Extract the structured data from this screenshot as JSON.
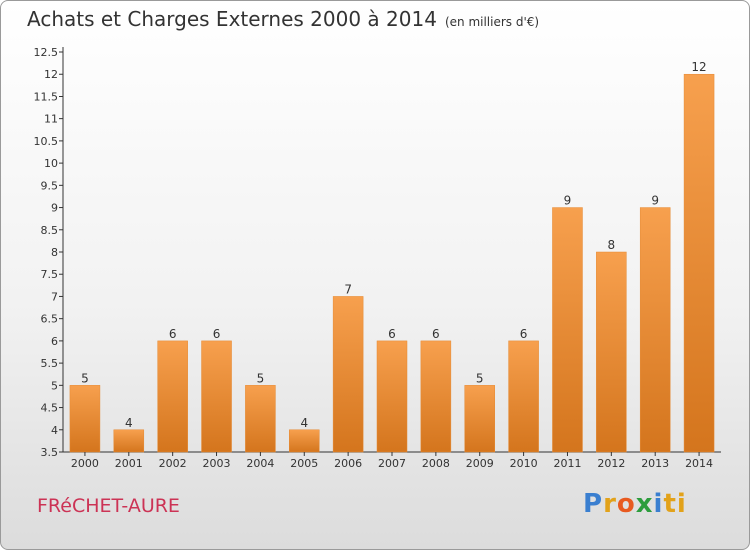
{
  "title": "Achats et Charges Externes 2000 à 2014",
  "unit": "(en milliers d'€)",
  "commune": "FRéCHET-AURE",
  "brand": [
    "P",
    "r",
    "o",
    "x",
    "i",
    "ti"
  ],
  "colors": {
    "bar_top": "#f7a04e",
    "bar_bottom": "#d4751d",
    "axis": "#333333",
    "grid": "#bbbbbb"
  },
  "chart_data": {
    "type": "bar",
    "categories": [
      "2000",
      "2001",
      "2002",
      "2003",
      "2004",
      "2005",
      "2006",
      "2007",
      "2008",
      "2009",
      "2010",
      "2011",
      "2012",
      "2013",
      "2014"
    ],
    "values": [
      5,
      4,
      6,
      6,
      5,
      4,
      7,
      6,
      6,
      5,
      6,
      9,
      8,
      9,
      12
    ],
    "ylim": [
      3.5,
      12.5
    ],
    "yticks": [
      "3.5",
      "4",
      "4.5",
      "5",
      "5.5",
      "6",
      "6.5",
      "7",
      "7.5",
      "8",
      "8.5",
      "9",
      "9.5",
      "10",
      "10.5",
      "11",
      "11.5",
      "12",
      "12.5"
    ]
  }
}
